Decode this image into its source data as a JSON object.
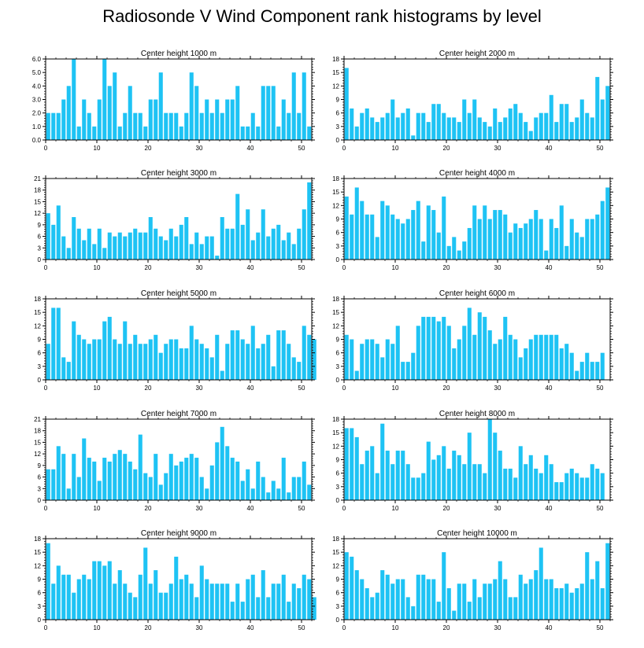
{
  "title": "Radiosonde V Wind Component rank histograms by level",
  "colors": {
    "bar": "#1ec3f4",
    "axis": "#000000"
  },
  "chart_data": [
    {
      "type": "bar",
      "title": "Center height 1000 m",
      "ylim": [
        0,
        6
      ],
      "yticks": [
        0,
        1,
        2,
        3,
        4,
        5,
        6
      ],
      "ytick_labels": [
        "0.0",
        "1.0",
        "2.0",
        "3.0",
        "4.0",
        "5.0",
        "6.0"
      ],
      "xlim": [
        0,
        52
      ],
      "xticks": [
        0,
        10,
        20,
        30,
        40,
        50
      ],
      "values": [
        2,
        2,
        2,
        3,
        4,
        6,
        1,
        3,
        2,
        1,
        3,
        6,
        4,
        5,
        1,
        2,
        4,
        2,
        2,
        1,
        3,
        3,
        5,
        2,
        2,
        2,
        1,
        2,
        5,
        4,
        2,
        3,
        2,
        3,
        2,
        3,
        3,
        4,
        1,
        1,
        2,
        1,
        4,
        4,
        4,
        1,
        3,
        2,
        5,
        2,
        5,
        1
      ]
    },
    {
      "type": "bar",
      "title": "Center height 2000 m",
      "ylim": [
        0,
        18
      ],
      "yticks": [
        0,
        3,
        6,
        9,
        12,
        15,
        18
      ],
      "ytick_labels": [
        "0",
        "3",
        "6",
        "9",
        "12",
        "15",
        "18"
      ],
      "xlim": [
        0,
        52
      ],
      "xticks": [
        0,
        10,
        20,
        30,
        40,
        50
      ],
      "values": [
        16,
        7,
        3,
        6,
        7,
        5,
        4,
        5,
        6,
        9,
        5,
        6,
        7,
        1,
        6,
        6,
        4,
        8,
        8,
        6,
        5,
        5,
        4,
        9,
        6,
        9,
        5,
        4,
        3,
        7,
        4,
        5,
        7,
        8,
        6,
        4,
        2,
        5,
        6,
        6,
        10,
        4,
        8,
        8,
        4,
        5,
        9,
        6,
        5,
        14,
        9,
        12
      ]
    },
    {
      "type": "bar",
      "title": "Center height 3000 m",
      "ylim": [
        0,
        21
      ],
      "yticks": [
        0,
        3,
        6,
        9,
        12,
        15,
        18,
        21
      ],
      "ytick_labels": [
        "0",
        "3",
        "6",
        "9",
        "12",
        "15",
        "18",
        "21"
      ],
      "xlim": [
        0,
        52
      ],
      "xticks": [
        0,
        10,
        20,
        30,
        40,
        50
      ],
      "values": [
        12,
        9,
        14,
        6,
        3,
        11,
        8,
        5,
        8,
        4,
        8,
        3,
        7,
        6,
        7,
        6,
        7,
        8,
        7,
        7,
        11,
        8,
        6,
        5,
        8,
        6,
        9,
        11,
        4,
        7,
        4,
        6,
        6,
        1,
        11,
        8,
        8,
        17,
        9,
        13,
        5,
        7,
        13,
        6,
        8,
        9,
        5,
        7,
        4,
        8,
        13,
        20
      ]
    },
    {
      "type": "bar",
      "title": "Center height 4000 m",
      "ylim": [
        0,
        18
      ],
      "yticks": [
        0,
        3,
        6,
        9,
        12,
        15,
        18
      ],
      "ytick_labels": [
        "0",
        "3",
        "6",
        "9",
        "12",
        "15",
        "18"
      ],
      "xlim": [
        0,
        52
      ],
      "xticks": [
        0,
        10,
        20,
        30,
        40,
        50
      ],
      "values": [
        14,
        10,
        16,
        13,
        10,
        10,
        5,
        13,
        12,
        10,
        9,
        8,
        9,
        11,
        13,
        4,
        12,
        11,
        6,
        14,
        3,
        5,
        2,
        4,
        7,
        12,
        9,
        12,
        9,
        11,
        11,
        10,
        6,
        8,
        7,
        8,
        9,
        11,
        9,
        2,
        9,
        7,
        12,
        3,
        9,
        6,
        5,
        9,
        9,
        10,
        13,
        16
      ]
    },
    {
      "type": "bar",
      "title": "Center height 5000 m",
      "ylim": [
        0,
        18
      ],
      "yticks": [
        0,
        3,
        6,
        9,
        12,
        15,
        18
      ],
      "ytick_labels": [
        "0",
        "3",
        "6",
        "9",
        "12",
        "15",
        "18"
      ],
      "xlim": [
        0,
        52
      ],
      "xticks": [
        0,
        10,
        20,
        30,
        40,
        50
      ],
      "values": [
        8,
        16,
        16,
        5,
        4,
        13,
        10,
        9,
        8,
        9,
        9,
        13,
        14,
        9,
        8,
        13,
        8,
        10,
        8,
        8,
        9,
        10,
        6,
        8,
        9,
        9,
        7,
        7,
        12,
        9,
        8,
        7,
        5,
        10,
        2,
        8,
        11,
        11,
        9,
        8,
        12,
        7,
        8,
        10,
        3,
        11,
        11,
        8,
        5,
        4,
        12,
        10,
        9
      ]
    },
    {
      "type": "bar",
      "title": "Center height 6000 m",
      "ylim": [
        0,
        18
      ],
      "yticks": [
        0,
        3,
        6,
        9,
        12,
        15,
        18
      ],
      "ytick_labels": [
        "0",
        "3",
        "6",
        "9",
        "12",
        "15",
        "18"
      ],
      "xlim": [
        0,
        52
      ],
      "xticks": [
        0,
        10,
        20,
        30,
        40,
        50
      ],
      "values": [
        10,
        9,
        2,
        8,
        9,
        9,
        8,
        5,
        9,
        8,
        12,
        4,
        4,
        6,
        12,
        14,
        14,
        14,
        13,
        14,
        12,
        7,
        9,
        12,
        16,
        10,
        15,
        14,
        11,
        8,
        9,
        14,
        10,
        9,
        5,
        7,
        9,
        10,
        10,
        10,
        10,
        10,
        7,
        8,
        6,
        2,
        4,
        6,
        4,
        4,
        6
      ]
    },
    {
      "type": "bar",
      "title": "Center height 7000 m",
      "ylim": [
        0,
        21
      ],
      "yticks": [
        0,
        3,
        6,
        9,
        12,
        15,
        18,
        21
      ],
      "ytick_labels": [
        "0",
        "3",
        "6",
        "9",
        "12",
        "15",
        "18",
        "21"
      ],
      "xlim": [
        0,
        52
      ],
      "xticks": [
        0,
        10,
        20,
        30,
        40,
        50
      ],
      "values": [
        8,
        8,
        14,
        12,
        3,
        12,
        6,
        16,
        11,
        10,
        5,
        11,
        10,
        12,
        13,
        12,
        10,
        8,
        17,
        7,
        6,
        12,
        4,
        7,
        12,
        9,
        10,
        11,
        12,
        11,
        6,
        3,
        9,
        15,
        19,
        14,
        11,
        10,
        5,
        8,
        3,
        10,
        6,
        2,
        5,
        3,
        11,
        2,
        6,
        6,
        10,
        4
      ]
    },
    {
      "type": "bar",
      "title": "Center height 8000 m",
      "ylim": [
        0,
        18
      ],
      "yticks": [
        0,
        3,
        6,
        9,
        12,
        15,
        18
      ],
      "ytick_labels": [
        "0",
        "3",
        "6",
        "9",
        "12",
        "15",
        "18"
      ],
      "xlim": [
        0,
        52
      ],
      "xticks": [
        0,
        10,
        20,
        30,
        40,
        50
      ],
      "values": [
        16,
        16,
        14,
        8,
        11,
        12,
        6,
        17,
        11,
        8,
        11,
        11,
        8,
        5,
        5,
        6,
        13,
        9,
        10,
        12,
        7,
        11,
        10,
        8,
        15,
        8,
        8,
        6,
        18,
        15,
        11,
        7,
        7,
        5,
        12,
        8,
        10,
        7,
        6,
        10,
        8,
        4,
        4,
        6,
        7,
        6,
        5,
        5,
        8,
        7,
        6
      ]
    },
    {
      "type": "bar",
      "title": "Center height 9000 m",
      "ylim": [
        0,
        18
      ],
      "yticks": [
        0,
        3,
        6,
        9,
        12,
        15,
        18
      ],
      "ytick_labels": [
        "0",
        "3",
        "6",
        "9",
        "12",
        "15",
        "18"
      ],
      "xlim": [
        0,
        52
      ],
      "xticks": [
        0,
        10,
        20,
        30,
        40,
        50
      ],
      "values": [
        17,
        8,
        12,
        10,
        10,
        6,
        9,
        10,
        9,
        13,
        13,
        12,
        13,
        8,
        11,
        8,
        6,
        5,
        10,
        16,
        8,
        11,
        6,
        6,
        8,
        14,
        9,
        10,
        8,
        5,
        12,
        9,
        8,
        8,
        8,
        8,
        4,
        8,
        4,
        9,
        10,
        5,
        11,
        5,
        8,
        8,
        10,
        4,
        8,
        7,
        10,
        9,
        5
      ]
    },
    {
      "type": "bar",
      "title": "Center height 10000 m",
      "ylim": [
        0,
        18
      ],
      "yticks": [
        0,
        3,
        6,
        9,
        12,
        15,
        18
      ],
      "ytick_labels": [
        "0",
        "3",
        "6",
        "9",
        "12",
        "15",
        "18"
      ],
      "xlim": [
        0,
        52
      ],
      "xticks": [
        0,
        10,
        20,
        30,
        40,
        50
      ],
      "values": [
        15,
        14,
        11,
        9,
        7,
        5,
        6,
        11,
        10,
        8,
        9,
        9,
        5,
        3,
        10,
        10,
        9,
        9,
        4,
        15,
        7,
        2,
        8,
        8,
        4,
        9,
        5,
        8,
        8,
        9,
        13,
        9,
        5,
        5,
        10,
        8,
        9,
        11,
        16,
        9,
        9,
        7,
        7,
        8,
        6,
        7,
        8,
        15,
        9,
        13,
        7,
        17
      ]
    }
  ]
}
